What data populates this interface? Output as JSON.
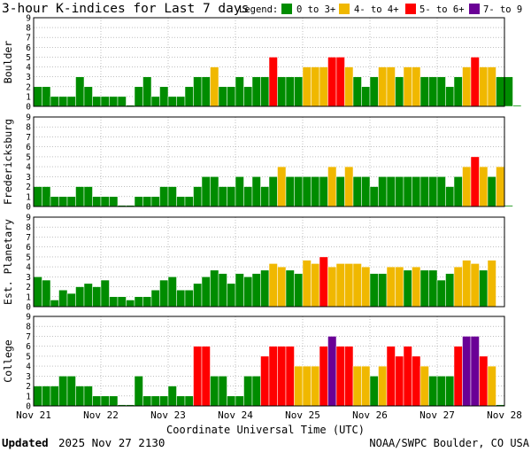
{
  "title": "3-hour K-indices for Last 7 days",
  "legend": {
    "label": "Legend:",
    "items": [
      {
        "label": "0 to 3+",
        "color": "#008c00"
      },
      {
        "label": "4- to 4+",
        "color": "#f0b800"
      },
      {
        "label": "5- to 6+",
        "color": "#ff0000"
      },
      {
        "label": "7- to 9",
        "color": "#6a0096"
      }
    ]
  },
  "footer": {
    "updated_label": "Updated",
    "updated_value": "2025 Nov 27 2130",
    "credit": "NOAA/SWPC Boulder, CO USA"
  },
  "chart_data": {
    "type": "bar",
    "xlabel": "Coordinate Universal Time (UTC)",
    "x_ticks": [
      "Nov 21",
      "Nov 22",
      "Nov 23",
      "Nov 24",
      "Nov 25",
      "Nov 26",
      "Nov 27",
      "Nov 28"
    ],
    "ylim": [
      0,
      9
    ],
    "y_ticks": [
      "0",
      "1",
      "2",
      "3",
      "4",
      "5",
      "6",
      "7",
      "8",
      "9"
    ],
    "bins_per_day": 8,
    "days": 7,
    "color_scale": {
      "green_max": 3.67,
      "yellow_max": 4.67,
      "red_max": 6.67
    },
    "panels": [
      {
        "name": "Boulder",
        "values": [
          2,
          2,
          1,
          1,
          1,
          3,
          2,
          1,
          1,
          1,
          1,
          0,
          2,
          3,
          1,
          2,
          1,
          1,
          2,
          3,
          3,
          4,
          2,
          2,
          3,
          2,
          3,
          3,
          5,
          3,
          3,
          3,
          4,
          4,
          4,
          5,
          5,
          4,
          3,
          2,
          3,
          4,
          4,
          3,
          4,
          4,
          3,
          3,
          3,
          2,
          3,
          4,
          5,
          4,
          4,
          3,
          3,
          0
        ]
      },
      {
        "name": "Fredericksburg",
        "values": [
          2,
          2,
          1,
          1,
          1,
          2,
          2,
          1,
          1,
          1,
          0,
          0,
          1,
          1,
          1,
          2,
          2,
          1,
          1,
          2,
          3,
          3,
          2,
          2,
          3,
          2,
          3,
          2,
          3,
          4,
          3,
          3,
          3,
          3,
          3,
          4,
          3,
          4,
          3,
          3,
          2,
          3,
          3,
          3,
          3,
          3,
          3,
          3,
          3,
          2,
          3,
          4,
          5,
          4,
          3,
          4,
          0
        ]
      },
      {
        "name": "Est. Planetary",
        "values": [
          3,
          2.67,
          0.67,
          1.67,
          1.33,
          2,
          2.33,
          2,
          2.67,
          1,
          1,
          0.67,
          1,
          1,
          1.67,
          2.67,
          3,
          1.67,
          1.67,
          2.33,
          3,
          3.67,
          3.33,
          2.33,
          3.33,
          3,
          3.33,
          3.67,
          4.33,
          4,
          3.67,
          3.33,
          4.67,
          4.33,
          5,
          4,
          4.33,
          4.33,
          4.33,
          4,
          3.33,
          3.33,
          4,
          4,
          3.67,
          4,
          3.67,
          3.67,
          2.67,
          3.33,
          4,
          4.67,
          4.33,
          3.67,
          4.67
        ]
      },
      {
        "name": "College",
        "values": [
          2,
          2,
          2,
          3,
          3,
          2,
          2,
          1,
          1,
          1,
          0,
          0,
          3,
          1,
          1,
          1,
          2,
          1,
          1,
          6,
          6,
          3,
          3,
          1,
          1,
          3,
          3,
          5,
          6,
          6,
          6,
          4,
          4,
          4,
          6,
          7,
          6,
          6,
          4,
          4,
          3,
          4,
          6,
          5,
          6,
          5,
          4,
          3,
          3,
          3,
          6,
          7,
          7,
          5,
          4,
          0
        ]
      }
    ]
  }
}
